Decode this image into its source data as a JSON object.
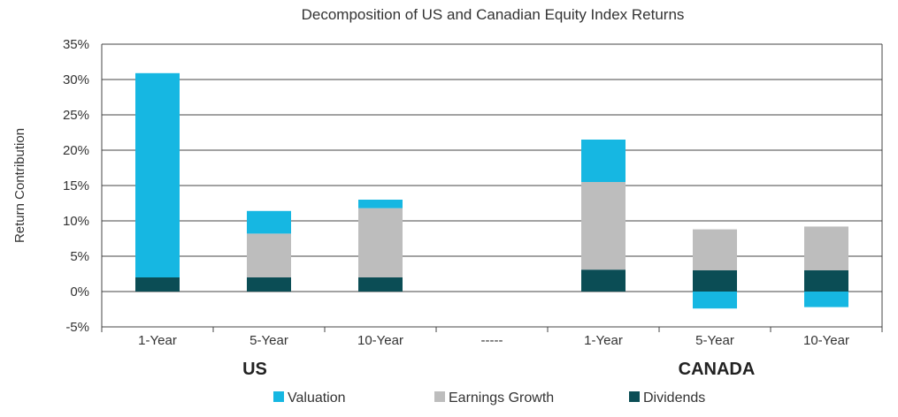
{
  "chart_data": {
    "type": "bar",
    "stacked": true,
    "title": "Decomposition of US and Canadian Equity Index Returns",
    "xlabel": "",
    "ylabel": "Return Contribution",
    "ylim": [
      -5,
      35
    ],
    "yticks": [
      "-5%",
      "0%",
      "5%",
      "10%",
      "15%",
      "20%",
      "25%",
      "30%",
      "35%"
    ],
    "ytick_values": [
      -5,
      0,
      5,
      10,
      15,
      20,
      25,
      30,
      35
    ],
    "grid": true,
    "categories": [
      "1-Year",
      "5-Year",
      "10-Year",
      "-----",
      "1-Year",
      "5-Year",
      "10-Year"
    ],
    "groups": [
      {
        "label": "US",
        "category_indices": [
          0,
          1,
          2
        ]
      },
      {
        "label": "CANADA",
        "category_indices": [
          4,
          5,
          6
        ]
      }
    ],
    "series": [
      {
        "name": "Dividends",
        "color": "#0b4d55",
        "values": [
          2.0,
          2.0,
          2.0,
          null,
          3.1,
          3.0,
          3.0
        ]
      },
      {
        "name": "Earnings Growth",
        "color": "#bdbdbd",
        "values": [
          0,
          6.2,
          9.8,
          null,
          12.4,
          5.8,
          6.2
        ]
      },
      {
        "name": "Valuation",
        "color": "#16b7e2",
        "values": [
          28.9,
          3.2,
          1.2,
          null,
          6.0,
          -2.4,
          -2.2
        ]
      }
    ],
    "legend": {
      "placement": "bottom",
      "entries": [
        {
          "name": "Valuation",
          "color": "#16b7e2"
        },
        {
          "name": "Earnings Growth",
          "color": "#bdbdbd"
        },
        {
          "name": "Dividends",
          "color": "#0b4d55"
        }
      ]
    }
  }
}
